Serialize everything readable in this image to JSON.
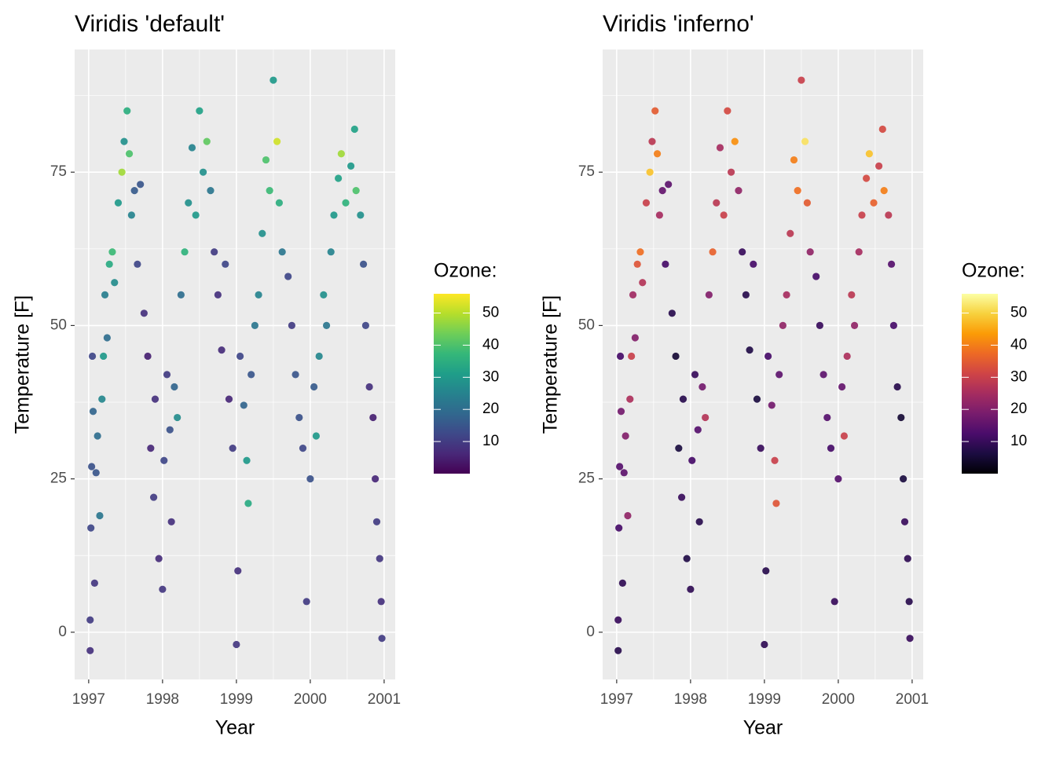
{
  "chart_data": [
    {
      "type": "scatter",
      "title": "Viridis 'default'",
      "x_label": "Year",
      "y_label": "Temperature [F]",
      "xlim": [
        1996.81,
        2001.15
      ],
      "ylim": [
        -7.7,
        95
      ],
      "xticks": [
        1997,
        1998,
        1999,
        2000,
        2001
      ],
      "yticks": [
        0,
        25,
        50,
        75
      ],
      "minor_xticks": [
        1997.5,
        1998.5,
        1999.5,
        2000.5
      ],
      "minor_yticks": [
        12.5,
        37.5,
        62.5,
        87.5
      ],
      "grid": true,
      "x": [
        1997.02,
        1997.02,
        1997.03,
        1997.04,
        1997.05,
        1997.06,
        1997.08,
        1997.1,
        1997.12,
        1997.15,
        1997.18,
        1997.2,
        1997.22,
        1997.25,
        1997.28,
        1997.32,
        1997.35,
        1997.4,
        1997.45,
        1997.48,
        1997.52,
        1997.55,
        1997.58,
        1997.62,
        1997.66,
        1997.7,
        1997.75,
        1997.8,
        1997.84,
        1997.88,
        1997.9,
        1997.95,
        1998.0,
        1998.02,
        1998.06,
        1998.1,
        1998.12,
        1998.16,
        1998.2,
        1998.25,
        1998.3,
        1998.35,
        1998.4,
        1998.45,
        1998.5,
        1998.55,
        1998.6,
        1998.65,
        1998.7,
        1998.75,
        1998.8,
        1998.85,
        1998.9,
        1998.95,
        1999.0,
        1999.02,
        1999.05,
        1999.1,
        1999.14,
        1999.16,
        1999.2,
        1999.25,
        1999.3,
        1999.35,
        1999.4,
        1999.45,
        1999.5,
        1999.55,
        1999.58,
        1999.62,
        1999.7,
        1999.75,
        1999.8,
        1999.85,
        1999.9,
        1999.95,
        2000.0,
        2000.05,
        2000.08,
        2000.12,
        2000.18,
        2000.22,
        2000.28,
        2000.32,
        2000.38,
        2000.42,
        2000.48,
        2000.55,
        2000.6,
        2000.62,
        2000.68,
        2000.72,
        2000.75,
        2000.8,
        2000.85,
        2000.88,
        2000.9,
        2000.94,
        2000.96,
        2000.97
      ],
      "values": [
        -3,
        2,
        17,
        27,
        45,
        36,
        8,
        26,
        32,
        19,
        38,
        45,
        55,
        48,
        60,
        62,
        57,
        70,
        75,
        80,
        85,
        78,
        68,
        72,
        60,
        73,
        52,
        45,
        30,
        22,
        38,
        12,
        7,
        28,
        42,
        33,
        18,
        40,
        35,
        55,
        62,
        70,
        79,
        68,
        85,
        75,
        80,
        72,
        62,
        55,
        46,
        60,
        38,
        30,
        -2,
        10,
        45,
        37,
        28,
        21,
        42,
        50,
        55,
        65,
        77,
        72,
        90,
        80,
        70,
        62,
        58,
        50,
        42,
        35,
        30,
        5,
        25,
        40,
        32,
        45,
        55,
        50,
        62,
        68,
        74,
        78,
        70,
        76,
        82,
        72,
        68,
        60,
        50,
        40,
        35,
        25,
        18,
        12,
        5,
        -1
      ],
      "color_values": [
        8,
        10,
        12,
        14,
        12,
        18,
        9,
        15,
        20,
        22,
        26,
        30,
        24,
        20,
        34,
        38,
        27,
        30,
        48,
        28,
        35,
        40,
        25,
        16,
        12,
        15,
        8,
        5,
        6,
        10,
        8,
        7,
        9,
        12,
        10,
        14,
        8,
        18,
        27,
        20,
        36,
        28,
        25,
        30,
        32,
        28,
        42,
        22,
        10,
        8,
        7,
        12,
        6,
        10,
        9,
        8,
        12,
        18,
        30,
        34,
        15,
        22,
        25,
        28,
        40,
        38,
        30,
        52,
        35,
        22,
        12,
        10,
        15,
        14,
        12,
        10,
        14,
        16,
        30,
        26,
        28,
        22,
        25,
        30,
        32,
        48,
        36,
        30,
        32,
        40,
        28,
        14,
        12,
        8,
        5,
        6,
        10,
        9,
        8,
        10
      ],
      "colorbar": {
        "title": "Ozone:",
        "lim": [
          0,
          56
        ],
        "ticks": [
          10,
          20,
          30,
          40,
          50
        ]
      },
      "colormap": [
        "#440154",
        "#482878",
        "#3e4989",
        "#31688e",
        "#26828e",
        "#1f9e89",
        "#35b779",
        "#6ece58",
        "#b5de2b",
        "#fde725"
      ]
    },
    {
      "type": "scatter",
      "title": "Viridis 'inferno'",
      "x_label": "Year",
      "y_label": "Temperature [F]",
      "xlim": [
        1996.81,
        2001.15
      ],
      "ylim": [
        -7.7,
        95
      ],
      "xticks": [
        1997,
        1998,
        1999,
        2000,
        2001
      ],
      "yticks": [
        0,
        25,
        50,
        75
      ],
      "minor_xticks": [
        1997.5,
        1998.5,
        1999.5,
        2000.5
      ],
      "minor_yticks": [
        12.5,
        37.5,
        62.5,
        87.5
      ],
      "grid": true,
      "x": [
        1997.02,
        1997.02,
        1997.03,
        1997.04,
        1997.05,
        1997.06,
        1997.08,
        1997.1,
        1997.12,
        1997.15,
        1997.18,
        1997.2,
        1997.22,
        1997.25,
        1997.28,
        1997.32,
        1997.35,
        1997.4,
        1997.45,
        1997.48,
        1997.52,
        1997.55,
        1997.58,
        1997.62,
        1997.66,
        1997.7,
        1997.75,
        1997.8,
        1997.84,
        1997.88,
        1997.9,
        1997.95,
        1998.0,
        1998.02,
        1998.06,
        1998.1,
        1998.12,
        1998.16,
        1998.2,
        1998.25,
        1998.3,
        1998.35,
        1998.4,
        1998.45,
        1998.5,
        1998.55,
        1998.6,
        1998.65,
        1998.7,
        1998.75,
        1998.8,
        1998.85,
        1998.9,
        1998.95,
        1999.0,
        1999.02,
        1999.05,
        1999.1,
        1999.14,
        1999.16,
        1999.2,
        1999.25,
        1999.3,
        1999.35,
        1999.4,
        1999.45,
        1999.5,
        1999.55,
        1999.58,
        1999.62,
        1999.7,
        1999.75,
        1999.8,
        1999.85,
        1999.9,
        1999.95,
        2000.0,
        2000.05,
        2000.08,
        2000.12,
        2000.18,
        2000.22,
        2000.28,
        2000.32,
        2000.38,
        2000.42,
        2000.48,
        2000.55,
        2000.6,
        2000.62,
        2000.68,
        2000.72,
        2000.75,
        2000.8,
        2000.85,
        2000.88,
        2000.9,
        2000.94,
        2000.96,
        2000.97
      ],
      "values": [
        -3,
        2,
        17,
        27,
        45,
        36,
        8,
        26,
        32,
        19,
        38,
        45,
        55,
        48,
        60,
        62,
        57,
        70,
        75,
        80,
        85,
        78,
        68,
        72,
        60,
        73,
        52,
        45,
        30,
        22,
        38,
        12,
        7,
        28,
        42,
        33,
        18,
        40,
        35,
        55,
        62,
        70,
        79,
        68,
        85,
        75,
        80,
        72,
        62,
        55,
        46,
        60,
        38,
        30,
        -2,
        10,
        45,
        37,
        28,
        21,
        42,
        50,
        55,
        65,
        77,
        72,
        90,
        80,
        70,
        62,
        58,
        50,
        42,
        35,
        30,
        5,
        25,
        40,
        32,
        45,
        55,
        50,
        62,
        68,
        74,
        78,
        70,
        76,
        82,
        72,
        68,
        60,
        50,
        40,
        35,
        25,
        18,
        12,
        5,
        -1
      ],
      "color_values": [
        8,
        10,
        12,
        14,
        12,
        18,
        9,
        15,
        20,
        22,
        26,
        30,
        24,
        20,
        34,
        38,
        27,
        30,
        48,
        28,
        35,
        40,
        25,
        16,
        12,
        15,
        8,
        5,
        6,
        10,
        8,
        7,
        9,
        12,
        10,
        14,
        8,
        18,
        27,
        20,
        36,
        28,
        25,
        30,
        32,
        28,
        42,
        22,
        10,
        8,
        7,
        12,
        6,
        10,
        9,
        8,
        12,
        18,
        30,
        34,
        15,
        22,
        25,
        28,
        40,
        38,
        30,
        52,
        35,
        22,
        12,
        10,
        15,
        14,
        12,
        10,
        14,
        16,
        30,
        26,
        28,
        22,
        25,
        30,
        32,
        48,
        36,
        30,
        32,
        40,
        28,
        14,
        12,
        8,
        5,
        6,
        10,
        9,
        8,
        10
      ],
      "colorbar": {
        "title": "Ozone:",
        "lim": [
          0,
          56
        ],
        "ticks": [
          10,
          20,
          30,
          40,
          50
        ]
      },
      "colormap": [
        "#000004",
        "#1b0c41",
        "#4a0c6b",
        "#781c6d",
        "#a52c60",
        "#cf4446",
        "#ed6925",
        "#fb9b06",
        "#f7d13d",
        "#fcffa4"
      ]
    }
  ]
}
